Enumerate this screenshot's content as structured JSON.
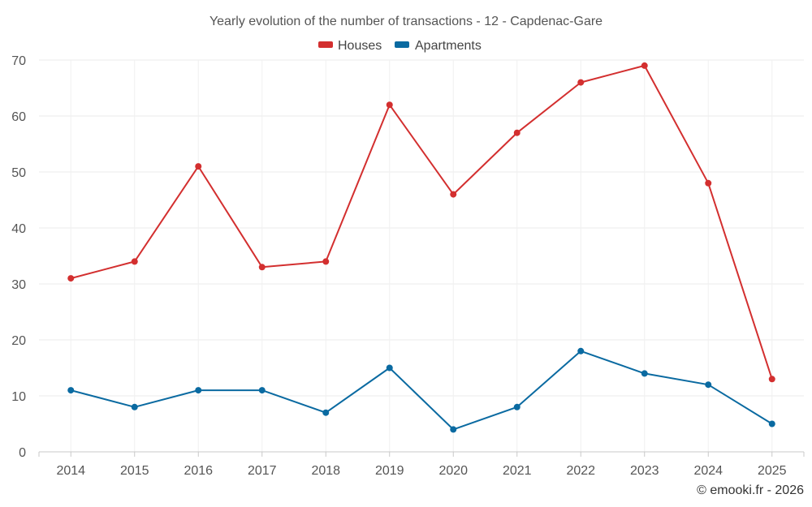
{
  "chart_data": {
    "type": "line",
    "title": "Yearly evolution of the number of transactions - 12 - Capdenac-Gare",
    "xlabel": "",
    "ylabel": "",
    "categories": [
      "2014",
      "2015",
      "2016",
      "2017",
      "2018",
      "2019",
      "2020",
      "2021",
      "2022",
      "2023",
      "2024",
      "2025"
    ],
    "ylim": [
      0,
      70
    ],
    "yticks": [
      "0",
      "10",
      "20",
      "30",
      "40",
      "50",
      "60",
      "70"
    ],
    "grid": true,
    "legend_position": "top-center",
    "series": [
      {
        "name": "Houses",
        "color": "#d32f2f",
        "values": [
          31,
          34,
          51,
          33,
          34,
          62,
          46,
          57,
          66,
          69,
          48,
          13
        ]
      },
      {
        "name": "Apartments",
        "color": "#0a6aa1",
        "values": [
          11,
          8,
          11,
          11,
          7,
          15,
          4,
          8,
          18,
          14,
          12,
          5
        ]
      }
    ],
    "credit": "© emooki.fr - 2026"
  }
}
